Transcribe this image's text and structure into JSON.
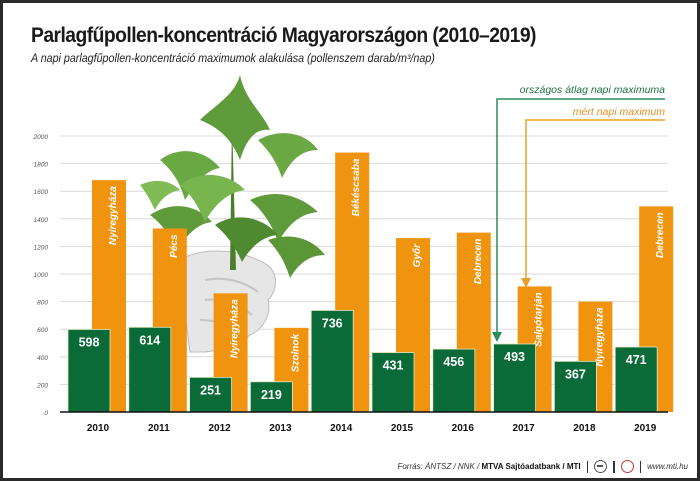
{
  "header": {
    "title": "Parlagfűpollen-koncentráció Magyarországon (2010–2019)",
    "subtitle": "A napi parlagfűpollen-koncentráció maximumok alakulása (pollenszem darab/m³/nap)"
  },
  "legend": {
    "national_avg_label": "országos átlag napi maximuma",
    "measured_max_label": "mért napi maximum"
  },
  "footer": {
    "source_prefix": "Forrás: ÁNTSZ / NNK / ",
    "source_bold": "MTVA Sajtóadatbank / MTI",
    "website": "www.mti.hu"
  },
  "colors": {
    "green": "#0a6b38",
    "orange": "#f0930f",
    "grid": "#d9d9d9",
    "legend_green": "#2e8b5e",
    "legend_orange": "#e8a02a"
  },
  "chart_data": {
    "type": "bar",
    "title": "Parlagfűpollen-koncentráció Magyarországon (2010–2019)",
    "subtitle": "A napi parlagfűpollen-koncentráció maximumok alakulása (pollenszem darab/m³/nap)",
    "xlabel": "",
    "ylabel": "pollenszem darab/m³/nap",
    "ylim": [
      0,
      2000
    ],
    "yticks": [
      0,
      200,
      400,
      600,
      800,
      1000,
      1200,
      1400,
      1600,
      1800,
      2000
    ],
    "grid": true,
    "legend_position": "top-right",
    "categories": [
      "2010",
      "2011",
      "2012",
      "2013",
      "2014",
      "2015",
      "2016",
      "2017",
      "2018",
      "2019"
    ],
    "series": [
      {
        "name": "mért napi maximum",
        "values": [
          1680,
          1330,
          860,
          610,
          1880,
          1260,
          1300,
          910,
          800,
          1490
        ],
        "labels": [
          "Nyíregyháza",
          "Pécs",
          "Nyíregyháza",
          "Szolnok",
          "Békéscsaba",
          "Győr",
          "Debrecen",
          "Salgótarján",
          "Nyíregyháza",
          "Debrecen"
        ]
      },
      {
        "name": "országos átlag napi maximuma",
        "values": [
          598,
          614,
          251,
          219,
          736,
          431,
          456,
          493,
          367,
          471
        ]
      }
    ]
  }
}
